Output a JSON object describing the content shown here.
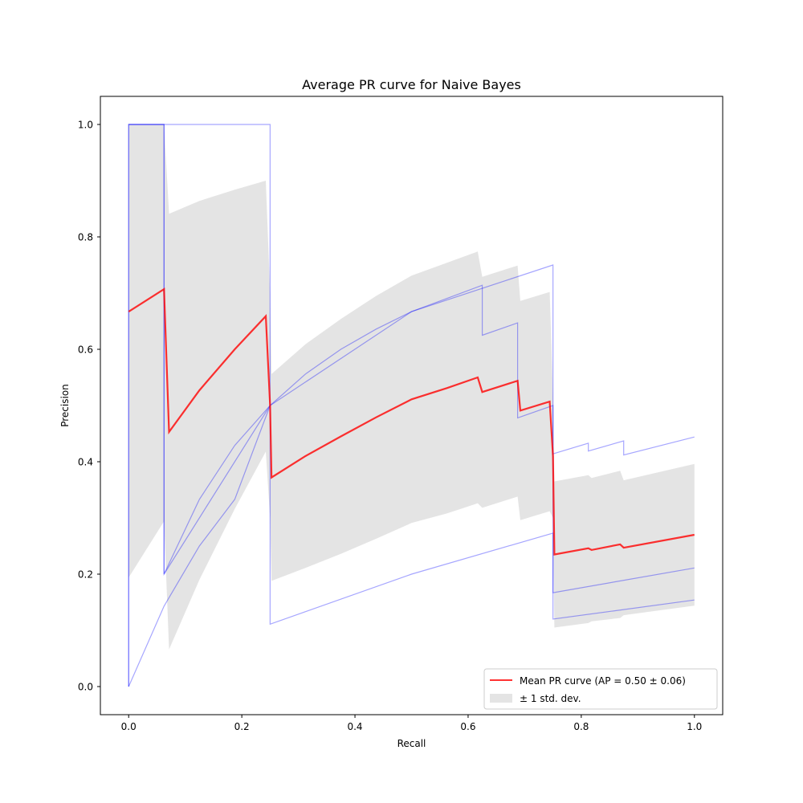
{
  "chart_data": {
    "type": "line",
    "title": "Average PR curve for Naive Bayes",
    "xlabel": "Recall",
    "ylabel": "Precision",
    "xlim": [
      -0.05,
      1.05
    ],
    "ylim": [
      -0.05,
      1.05
    ],
    "xticks": [
      0.0,
      0.2,
      0.4,
      0.6,
      0.8,
      1.0
    ],
    "yticks": [
      0.0,
      0.2,
      0.4,
      0.6,
      0.8,
      1.0
    ],
    "xtick_labels": [
      "0.0",
      "0.2",
      "0.4",
      "0.6",
      "0.8",
      "1.0"
    ],
    "ytick_labels": [
      "0.0",
      "0.2",
      "0.4",
      "0.6",
      "0.8",
      "1.0"
    ],
    "grid": false,
    "legend_position": "bottom-right",
    "colors": {
      "mean": "#ff0000",
      "fold": "#0000ff",
      "band": "#b3b3b3"
    },
    "mean_curve": {
      "name": "Mean PR curve (AP = 0.50 ± 0.06)",
      "x": [
        0.0,
        0.0625,
        0.0714,
        0.125,
        0.1875,
        0.2424,
        0.25,
        0.2525,
        0.3125,
        0.375,
        0.4375,
        0.5,
        0.5625,
        0.617,
        0.625,
        0.6875,
        0.6923,
        0.7442,
        0.75,
        0.7525,
        0.8125,
        0.8182,
        0.8687,
        0.875,
        1.0
      ],
      "y": [
        0.667,
        0.707,
        0.453,
        0.527,
        0.6,
        0.659,
        0.5,
        0.372,
        0.41,
        0.445,
        0.479,
        0.511,
        0.531,
        0.55,
        0.524,
        0.544,
        0.491,
        0.507,
        0.41,
        0.235,
        0.246,
        0.243,
        0.253,
        0.247,
        0.27
      ]
    },
    "std_band": {
      "name": "± 1 std. dev.",
      "x": [
        0.0,
        0.0625,
        0.0714,
        0.125,
        0.1875,
        0.2424,
        0.25,
        0.2525,
        0.3125,
        0.375,
        0.4375,
        0.5,
        0.5625,
        0.617,
        0.625,
        0.6875,
        0.6923,
        0.7442,
        0.75,
        0.7525,
        0.8125,
        0.8182,
        0.8687,
        0.875,
        1.0
      ],
      "upper": [
        1.0,
        1.0,
        0.841,
        0.864,
        0.884,
        0.9,
        0.7,
        0.556,
        0.609,
        0.654,
        0.695,
        0.731,
        0.754,
        0.774,
        0.729,
        0.749,
        0.686,
        0.702,
        0.52,
        0.365,
        0.376,
        0.371,
        0.384,
        0.367,
        0.396
      ],
      "lower": [
        0.194,
        0.294,
        0.066,
        0.19,
        0.316,
        0.418,
        0.3,
        0.188,
        0.211,
        0.236,
        0.263,
        0.291,
        0.308,
        0.326,
        0.318,
        0.338,
        0.296,
        0.312,
        0.3,
        0.105,
        0.113,
        0.116,
        0.122,
        0.127,
        0.144
      ]
    },
    "folds": [
      {
        "x": [
          0.0,
          0.0,
          0.0625,
          0.0625,
          0.25,
          0.25,
          0.5,
          0.75,
          0.75,
          1.0
        ],
        "y": [
          0.0,
          1.0,
          1.0,
          0.2,
          0.5,
          0.111,
          0.2,
          0.273,
          0.167,
          0.211
        ]
      },
      {
        "x": [
          0.0,
          0.0625,
          0.125,
          0.1875,
          0.25,
          0.3125,
          0.375,
          0.4375,
          0.5,
          0.625,
          0.625,
          0.6875,
          0.6875,
          0.75,
          0.75,
          0.8125,
          0.8125,
          0.875,
          0.875,
          1.0
        ],
        "y": [
          0.0,
          0.143,
          0.25,
          0.333,
          0.5,
          0.556,
          0.6,
          0.636,
          0.667,
          0.714,
          0.625,
          0.647,
          0.478,
          0.5,
          0.414,
          0.433,
          0.419,
          0.437,
          0.412,
          0.444
        ]
      },
      {
        "x": [
          0.0,
          0.0,
          0.25,
          0.25,
          0.5,
          0.75,
          0.75,
          1.0
        ],
        "y": [
          0.0,
          1.0,
          1.0,
          0.5,
          0.667,
          0.75,
          0.12,
          0.154
        ]
      },
      {
        "x": [
          0.0,
          0.0625,
          0.0625,
          0.125,
          0.1875,
          0.25
        ],
        "y": [
          1.0,
          1.0,
          0.2,
          0.333,
          0.429,
          0.5
        ]
      }
    ]
  }
}
